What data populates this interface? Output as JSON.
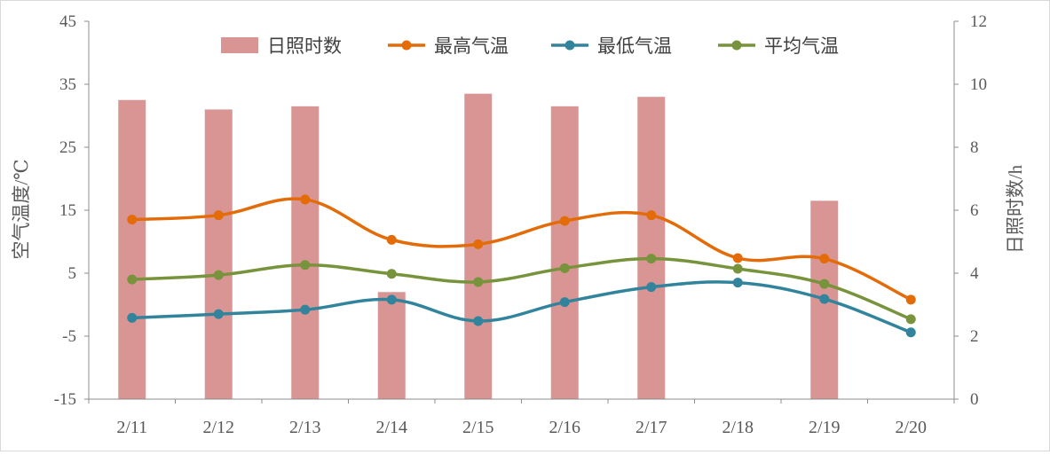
{
  "chart_data": {
    "type": "bar+line",
    "categories": [
      "2/11",
      "2/12",
      "2/13",
      "2/14",
      "2/15",
      "2/16",
      "2/17",
      "2/18",
      "2/19",
      "2/20"
    ],
    "bar_series": {
      "name": "日照时数",
      "axis": "right",
      "values": [
        9.5,
        9.2,
        9.3,
        3.4,
        9.7,
        9.3,
        9.6,
        null,
        6.3,
        null
      ],
      "color": "#d99594"
    },
    "line_series": [
      {
        "name": "最高气温",
        "axis": "left",
        "color": "#e36c09",
        "values": [
          13.5,
          14.2,
          16.7,
          10.3,
          9.6,
          13.3,
          14.2,
          7.4,
          7.3,
          0.8
        ]
      },
      {
        "name": "最低气温",
        "axis": "left",
        "color": "#31849b",
        "values": [
          -2.1,
          -1.5,
          -0.8,
          0.8,
          -2.6,
          0.4,
          2.8,
          3.5,
          0.9,
          -4.4
        ]
      },
      {
        "name": "平均气温",
        "axis": "left",
        "color": "#77933c",
        "values": [
          4.0,
          4.7,
          6.3,
          4.9,
          3.6,
          5.8,
          7.3,
          5.7,
          3.3,
          -2.3
        ]
      }
    ],
    "ylabel_left": "空气温度/℃",
    "ylabel_right": "日照时数/h",
    "ylim_left": [
      -15,
      45
    ],
    "yticks_left": [
      "-15",
      "-5",
      "5",
      "15",
      "25",
      "35",
      "45"
    ],
    "ylim_right": [
      0,
      12
    ],
    "yticks_right": [
      "0",
      "2",
      "4",
      "6",
      "8",
      "10",
      "12"
    ],
    "legend_position": "top-center",
    "grid": false
  }
}
